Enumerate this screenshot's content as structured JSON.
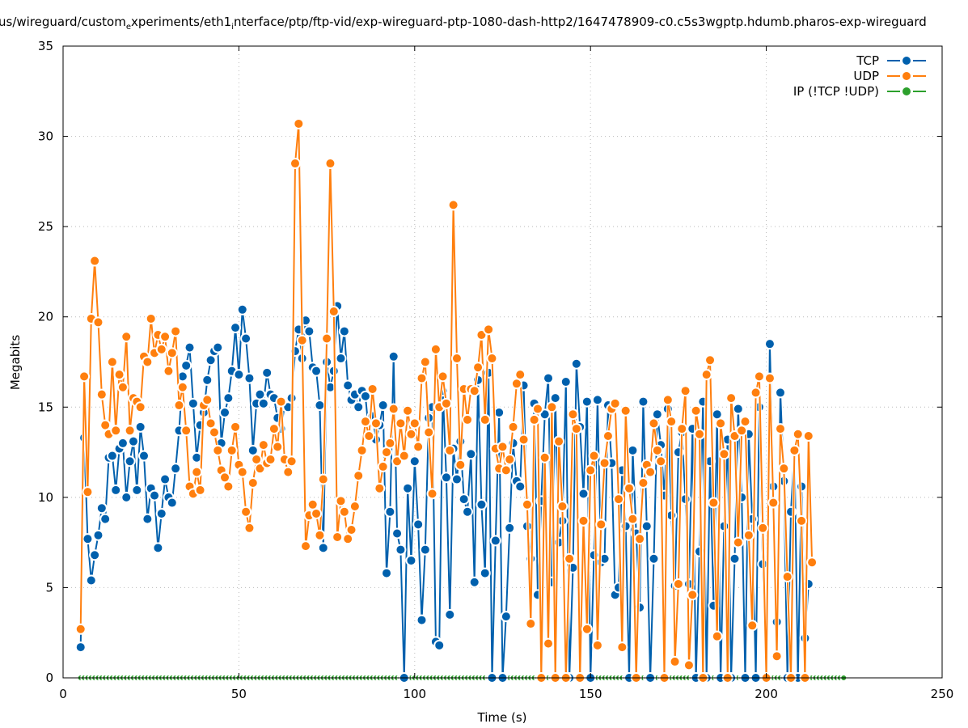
{
  "title_parts": [
    "us/wireguard/custom",
    "e",
    "xperiments/eth1",
    "i",
    "nterface/ptp/ftp-vid/exp-wireguard-ptp-1080-dash-http2/1647478909-c0.c5s3wgptp.hdumb.pharos-exp-wireguard"
  ],
  "chart_data": {
    "type": "line",
    "xlabel": "Time (s)",
    "ylabel": "Megabits",
    "xlim": [
      0,
      250
    ],
    "ylim": [
      0,
      35
    ],
    "xticks": [
      0,
      50,
      100,
      150,
      200,
      250
    ],
    "yticks": [
      0,
      5,
      10,
      15,
      20,
      25,
      30,
      35
    ],
    "grid": true,
    "legend_position": "top-right",
    "series": [
      {
        "name": "IP (!TCP  !UDP)",
        "color": "#2ca02c",
        "x_start": 5,
        "x_step": 1,
        "values": [
          0,
          0,
          0,
          0,
          0,
          0,
          0,
          0,
          0,
          0,
          0,
          0,
          0,
          0,
          0,
          0,
          0,
          0,
          0,
          0,
          0,
          0,
          0,
          0,
          0,
          0,
          0,
          0,
          0,
          0,
          0,
          0,
          0,
          0,
          0,
          0,
          0,
          0,
          0,
          0,
          0,
          0,
          0,
          0,
          0,
          0,
          0,
          0,
          0,
          0,
          0,
          0,
          0,
          0,
          0,
          0,
          0,
          0,
          0,
          0,
          0,
          0,
          0,
          0,
          0,
          0,
          0,
          0,
          0,
          0,
          0,
          0,
          0,
          0,
          0,
          0,
          0,
          0,
          0,
          0,
          0,
          0,
          0,
          0,
          0,
          0,
          0,
          0,
          0,
          0,
          0,
          0,
          0,
          0,
          0,
          0,
          0,
          0,
          0,
          0,
          0,
          0,
          0,
          0,
          0,
          0,
          0,
          0,
          0,
          0,
          0,
          0,
          0,
          0,
          0,
          0,
          0,
          0,
          0,
          0,
          0,
          0,
          0,
          0,
          0,
          0,
          0,
          0,
          0,
          0,
          0,
          0,
          0,
          0,
          0,
          0,
          0,
          0,
          0,
          0,
          0,
          0,
          0,
          0,
          0,
          0,
          0,
          0,
          0,
          0,
          0,
          0,
          0,
          0,
          0,
          0,
          0,
          0,
          0,
          0,
          0,
          0,
          0,
          0,
          0,
          0,
          0,
          0,
          0,
          0,
          0,
          0,
          0,
          0,
          0,
          0,
          0,
          0,
          0,
          0,
          0,
          0,
          0,
          0,
          0,
          0,
          0,
          0,
          0,
          0,
          0,
          0,
          0,
          0,
          0,
          0,
          0,
          0,
          0,
          0,
          0,
          0,
          0,
          0,
          0,
          0,
          0,
          0,
          0,
          0,
          0,
          0,
          0,
          0,
          0,
          0,
          0,
          0
        ]
      },
      {
        "name": "TCP",
        "color": "#0060ad",
        "x_start": 5,
        "x_step": 1,
        "values": [
          1.7,
          13.3,
          7.7,
          5.4,
          6.8,
          7.9,
          9.4,
          8.8,
          12.2,
          12.3,
          10.4,
          12.7,
          13.0,
          10.0,
          12.0,
          13.1,
          10.4,
          13.9,
          12.3,
          8.8,
          10.5,
          10.1,
          7.2,
          9.1,
          11.0,
          10.0,
          9.7,
          11.6,
          13.7,
          16.7,
          17.3,
          18.3,
          15.2,
          12.2,
          14.0,
          14.7,
          16.5,
          17.6,
          18.1,
          18.3,
          13.0,
          14.7,
          15.5,
          17.0,
          19.4,
          16.8,
          20.4,
          18.8,
          16.6,
          12.6,
          15.2,
          15.7,
          15.2,
          16.9,
          15.7,
          15.5,
          14.4,
          13.8,
          15.1,
          15.0,
          15.5,
          18.1,
          19.3,
          17.7,
          19.8,
          19.2,
          17.2,
          17.0,
          15.1,
          7.2,
          17.5,
          16.1,
          17.0,
          20.6,
          17.7,
          19.2,
          16.2,
          15.4,
          15.7,
          15.0,
          15.9,
          15.6,
          13.5,
          14.5,
          13.2,
          14.0,
          15.1,
          5.8,
          9.2,
          17.8,
          8.0,
          7.1,
          0,
          10.5,
          6.5,
          12.0,
          8.5,
          3.2,
          7.1,
          14.4,
          15.0,
          2.0,
          1.8,
          15.9,
          11.1,
          3.5,
          12.7,
          11.0,
          13.1,
          9.9,
          9.2,
          12.4,
          5.3,
          16.5,
          9.6,
          5.8,
          16.9,
          0,
          7.6,
          14.7,
          0,
          3.4,
          8.3,
          13.0,
          10.9,
          10.6,
          16.2,
          8.4,
          6.6,
          15.2,
          4.6,
          9.8,
          14.6,
          16.6,
          5.3,
          15.5,
          7.5,
          8.7,
          16.4,
          0,
          6.1,
          17.4,
          13.9,
          10.2,
          15.3,
          0,
          6.8,
          15.4,
          6.4,
          6.6,
          15.1,
          11.9,
          4.6,
          5.0,
          11.5,
          8.4,
          0,
          12.6,
          8.0,
          3.9,
          15.3,
          8.4,
          0,
          6.6,
          14.6,
          12.9,
          10.1,
          14.9,
          9.0,
          5.1,
          12.5,
          13.6,
          9.9,
          5.2,
          13.8,
          0,
          7.0,
          15.3,
          0,
          12.0,
          4.0,
          14.6,
          0,
          8.4,
          13.2,
          0,
          6.6,
          14.9,
          10.0,
          0,
          13.5,
          8.8,
          0,
          15.0,
          6.3,
          0,
          18.5,
          10.6,
          3.1,
          15.8,
          10.9,
          0,
          9.2,
          12.6,
          0,
          10.6,
          2.2,
          5.2
        ]
      },
      {
        "name": "UDP",
        "color": "#ff7f0e",
        "x_start": 5,
        "x_step": 1,
        "values": [
          2.7,
          16.7,
          10.3,
          19.9,
          23.1,
          19.7,
          15.7,
          14.0,
          13.5,
          17.5,
          13.7,
          16.8,
          16.1,
          18.9,
          13.7,
          15.5,
          15.3,
          15.0,
          17.8,
          17.5,
          19.9,
          18.0,
          19.0,
          18.2,
          18.9,
          17.0,
          18.0,
          19.2,
          15.1,
          16.1,
          13.7,
          10.6,
          10.2,
          11.4,
          10.4,
          15.1,
          15.4,
          14.1,
          13.6,
          12.6,
          11.5,
          11.1,
          10.6,
          12.6,
          13.9,
          11.8,
          11.4,
          9.2,
          8.3,
          10.8,
          12.1,
          11.6,
          12.9,
          11.9,
          12.1,
          13.8,
          12.8,
          15.3,
          12.1,
          11.4,
          12.0,
          28.5,
          30.7,
          18.7,
          7.3,
          9.0,
          9.6,
          9.1,
          7.9,
          11.0,
          18.8,
          28.5,
          20.3,
          7.8,
          9.8,
          9.2,
          7.7,
          8.2,
          9.5,
          11.2,
          12.6,
          14.2,
          13.4,
          16.0,
          14.1,
          10.5,
          11.7,
          12.5,
          13.0,
          14.9,
          12.0,
          14.1,
          12.3,
          14.8,
          13.5,
          14.1,
          12.8,
          16.6,
          17.5,
          13.6,
          10.2,
          18.2,
          15.0,
          16.7,
          15.2,
          12.6,
          26.2,
          17.7,
          11.8,
          16.0,
          14.3,
          16.0,
          15.9,
          17.2,
          19.0,
          14.3,
          19.3,
          17.7,
          12.7,
          11.6,
          12.8,
          11.5,
          12.1,
          13.9,
          16.3,
          16.8,
          13.2,
          9.6,
          3.0,
          14.3,
          14.9,
          0,
          12.2,
          1.9,
          15.0,
          0,
          13.1,
          9.5,
          0,
          6.6,
          14.6,
          13.8,
          0,
          8.7,
          2.7,
          11.5,
          12.3,
          1.8,
          8.5,
          11.9,
          13.4,
          14.9,
          15.2,
          9.9,
          1.7,
          14.8,
          10.5,
          8.8,
          0,
          7.7,
          10.8,
          11.8,
          11.4,
          14.1,
          12.6,
          12.0,
          0,
          15.4,
          14.2,
          0.9,
          5.2,
          13.8,
          15.9,
          0.7,
          4.6,
          14.8,
          13.5,
          0,
          16.8,
          17.6,
          9.7,
          2.3,
          14.1,
          12.4,
          0,
          15.5,
          13.4,
          7.5,
          13.7,
          14.2,
          7.9,
          2.9,
          15.8,
          16.7,
          8.3,
          0,
          16.6,
          9.7,
          1.2,
          13.8,
          11.6,
          5.6,
          0,
          12.6,
          13.5,
          8.7,
          0,
          13.4,
          6.4
        ]
      }
    ]
  }
}
